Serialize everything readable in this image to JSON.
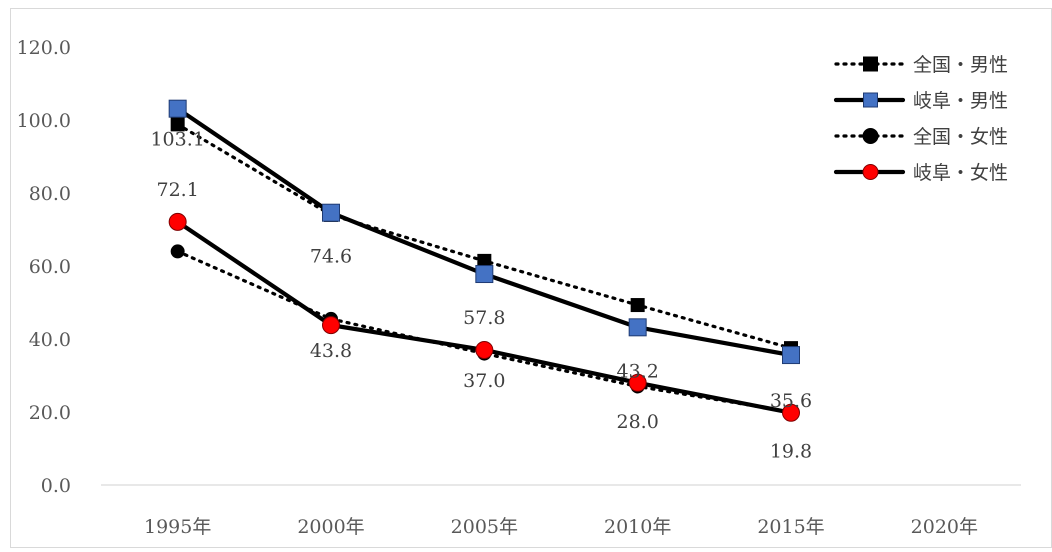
{
  "chart_data": {
    "type": "line",
    "categories": [
      "1995年",
      "2000年",
      "2005年",
      "2010年",
      "2015年",
      "2020年"
    ],
    "y_ticks": [
      "0.0",
      "20.0",
      "40.0",
      "60.0",
      "80.0",
      "100.0",
      "120.0"
    ],
    "ylim": [
      0,
      120
    ],
    "grid": false,
    "legend_position": "top-right",
    "series": [
      {
        "name": "全国・男性",
        "values": [
          98.8,
          74.0,
          61.4,
          49.3,
          37.5,
          null
        ],
        "line": "dotted",
        "marker": "square",
        "marker_color": "#000000",
        "data_labels": [
          null,
          null,
          null,
          null,
          null,
          null
        ]
      },
      {
        "name": "岐阜・男性",
        "values": [
          103.1,
          74.6,
          57.8,
          43.2,
          35.6,
          null
        ],
        "line": "solid",
        "marker": "square",
        "marker_color": "#4472c4",
        "data_labels": [
          "103.1",
          "74.6",
          "57.8",
          "43.2",
          "35.6",
          null
        ]
      },
      {
        "name": "全国・女性",
        "values": [
          64.0,
          45.5,
          36.0,
          27.0,
          20.0,
          null
        ],
        "line": "dotted",
        "marker": "circle",
        "marker_color": "#000000",
        "data_labels": [
          null,
          null,
          null,
          null,
          null,
          null
        ]
      },
      {
        "name": "岐阜・女性",
        "values": [
          72.1,
          43.8,
          37.0,
          28.0,
          19.8,
          null
        ],
        "line": "solid",
        "marker": "circle",
        "marker_color": "#ff0000",
        "data_labels": [
          "72.1",
          "43.8",
          "37.0",
          "28.0",
          "19.8",
          null
        ]
      }
    ]
  }
}
